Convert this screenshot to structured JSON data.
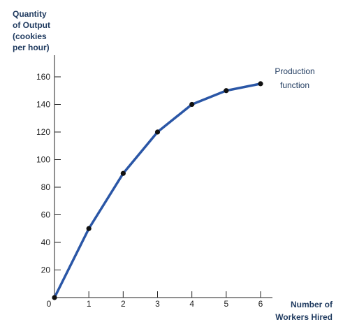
{
  "chart_data": {
    "type": "line",
    "xlabel_lines": [
      "Number of",
      "Workers Hired"
    ],
    "ylabel_lines": [
      "Quantity",
      "of Output",
      "(cookies",
      "per hour)"
    ],
    "annotation_lines": [
      "Production",
      "function"
    ],
    "x": [
      0,
      1,
      2,
      3,
      4,
      5,
      6
    ],
    "series": [
      {
        "values": [
          0,
          50,
          90,
          120,
          140,
          150,
          155
        ]
      }
    ],
    "x_ticks": [
      "0",
      "1",
      "2",
      "3",
      "4",
      "5",
      "6"
    ],
    "y_ticks": [
      "20",
      "40",
      "60",
      "80",
      "100",
      "120",
      "140",
      "160"
    ],
    "xlim": [
      0,
      6
    ],
    "ylim": [
      0,
      160
    ],
    "grid": false,
    "colors": {
      "line": "#2a56a6",
      "marker": "#111111",
      "axis": "#222222",
      "label": "#1f3a5f"
    }
  }
}
